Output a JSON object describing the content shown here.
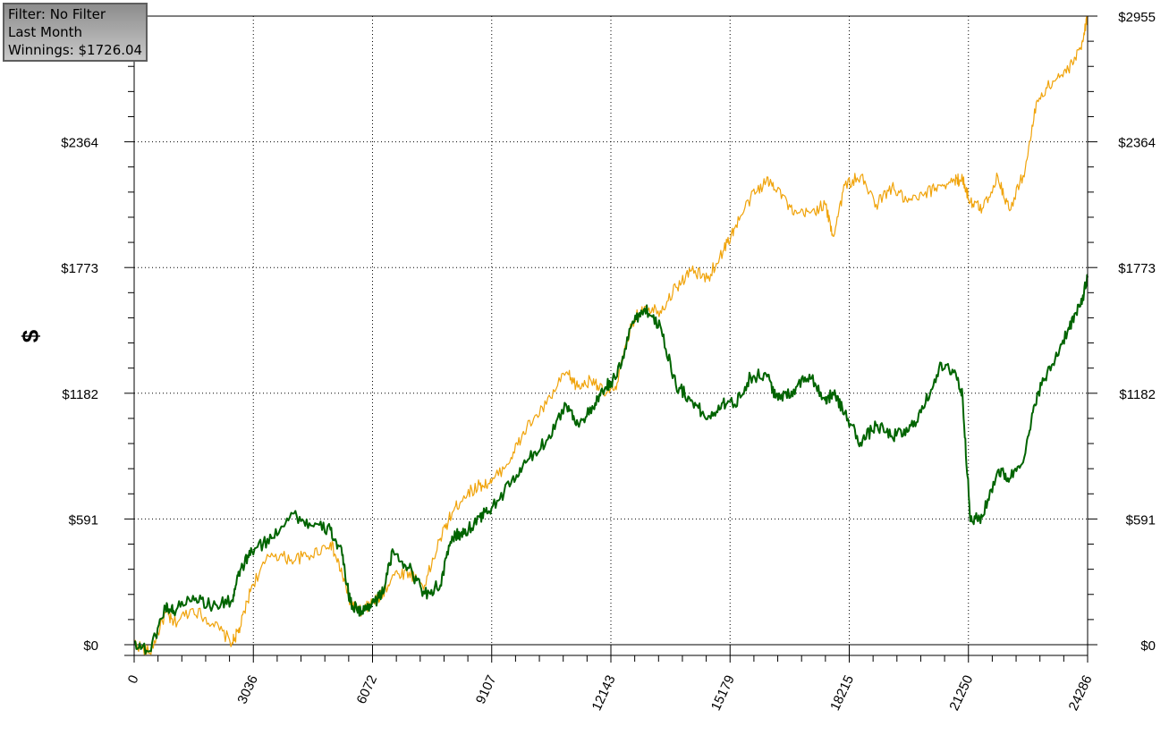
{
  "info_box": {
    "filter": "Filter: No Filter",
    "period": "Last Month",
    "winnings": "Winnings: $1726.04"
  },
  "colors": {
    "series_green": "#006400",
    "series_orange": "#f0a30a",
    "grid": "#000000"
  },
  "chart_data": {
    "type": "line",
    "ylabel": "$",
    "xlim": [
      0,
      24286
    ],
    "ylim": [
      0,
      2955
    ],
    "x_ticks": [
      "0",
      "3036",
      "6072",
      "9107",
      "12143",
      "15179",
      "18215",
      "21250",
      "24286"
    ],
    "y_ticks_left": [
      "$0",
      "$591",
      "$1182",
      "$1773",
      "$2364"
    ],
    "y_ticks_right": [
      "$0",
      "$591",
      "$1182",
      "$1773",
      "$2364",
      "$2955"
    ],
    "grid": true,
    "series": [
      {
        "color": "#f0a30a",
        "x": [
          0,
          400,
          800,
          1000,
          1500,
          2000,
          2500,
          2700,
          3000,
          3500,
          4000,
          4500,
          5000,
          5300,
          5500,
          5800,
          6000,
          6300,
          6600,
          7000,
          7400,
          7800,
          8100,
          8400,
          8800,
          9100,
          9600,
          10000,
          10500,
          11000,
          11300,
          11700,
          12000,
          12300,
          12700,
          13000,
          13400,
          13800,
          14200,
          14600,
          15000,
          15300,
          15700,
          16100,
          16400,
          16800,
          17200,
          17600,
          17800,
          18100,
          18500,
          18900,
          19300,
          19700,
          20100,
          20500,
          20900,
          21100,
          21300,
          21600,
          22000,
          22300,
          22700,
          23000,
          23400,
          23800,
          24100,
          24286
        ],
        "y": [
          10,
          -40,
          150,
          100,
          170,
          100,
          10,
          80,
          280,
          430,
          400,
          420,
          480,
          330,
          200,
          150,
          190,
          230,
          330,
          340,
          280,
          500,
          620,
          700,
          750,
          760,
          880,
          1020,
          1130,
          1280,
          1210,
          1250,
          1170,
          1230,
          1520,
          1590,
          1570,
          1680,
          1760,
          1720,
          1850,
          1960,
          2100,
          2180,
          2150,
          2020,
          2030,
          2070,
          1920,
          2160,
          2200,
          2070,
          2150,
          2080,
          2110,
          2160,
          2180,
          2190,
          2080,
          2050,
          2200,
          2040,
          2240,
          2560,
          2650,
          2700,
          2800,
          2955
        ]
      },
      {
        "color": "#006400",
        "x": [
          0,
          400,
          800,
          1000,
          1500,
          2000,
          2500,
          2700,
          3000,
          3500,
          4000,
          4500,
          5000,
          5300,
          5500,
          5800,
          6000,
          6300,
          6600,
          7000,
          7400,
          7800,
          8100,
          8400,
          8800,
          9100,
          9600,
          10000,
          10500,
          11000,
          11300,
          11700,
          12000,
          12300,
          12700,
          13000,
          13400,
          13800,
          14200,
          14600,
          15000,
          15300,
          15700,
          16100,
          16400,
          16800,
          17200,
          17600,
          17800,
          18100,
          18500,
          18900,
          19300,
          19700,
          20100,
          20500,
          20900,
          21100,
          21300,
          21600,
          22000,
          22300,
          22700,
          23000,
          23400,
          23800,
          24100,
          24286
        ],
        "y": [
          10,
          -30,
          180,
          160,
          230,
          180,
          210,
          350,
          440,
          500,
          620,
          560,
          540,
          420,
          200,
          150,
          190,
          230,
          440,
          360,
          240,
          280,
          510,
          520,
          600,
          640,
          760,
          860,
          960,
          1130,
          1040,
          1110,
          1210,
          1260,
          1520,
          1580,
          1500,
          1220,
          1150,
          1060,
          1140,
          1130,
          1260,
          1270,
          1150,
          1200,
          1270,
          1150,
          1180,
          1090,
          950,
          1030,
          980,
          1000,
          1110,
          1300,
          1290,
          1170,
          580,
          600,
          820,
          780,
          900,
          1180,
          1320,
          1490,
          1590,
          1726
        ]
      }
    ]
  }
}
